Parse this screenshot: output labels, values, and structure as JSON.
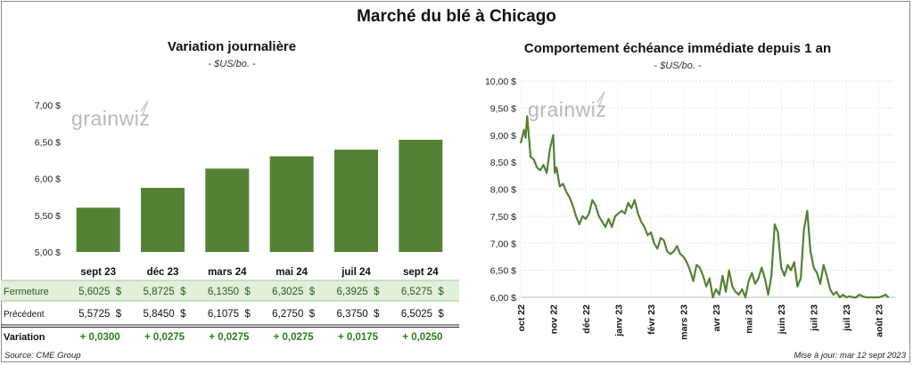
{
  "title": "Marché du blé à Chicago",
  "left_panel": {
    "title": "Variation  journalière",
    "subtitle": "- $US/bo. -",
    "table": {
      "rows": [
        {
          "label": "Fermeture",
          "values": [
            "5,6025  $",
            "5,8725  $",
            "6,1350  $",
            "6,3025  $",
            "6,3925  $",
            "6,5275  $"
          ]
        },
        {
          "label": "Précédent",
          "values": [
            "5,5725  $",
            "5,8450  $",
            "6,1075  $",
            "6,2750  $",
            "6,3750  $",
            "6,5025  $"
          ]
        },
        {
          "label": "Variation",
          "values": [
            "+ 0,0300",
            "+ 0,0275",
            "+ 0,0275",
            "+ 0,0275",
            "+ 0,0175",
            "+ 0,0250"
          ]
        }
      ]
    }
  },
  "right_panel": {
    "title": "Comportement  échéance immédiate depuis 1 an",
    "subtitle": "- $US/bo. -"
  },
  "footer": {
    "source": "Source: CME Group",
    "updated": "Mise à jour: mar 12 sept 2023"
  },
  "logo": {
    "text": "grainwiz"
  },
  "colors": {
    "bar": "#548235",
    "line": "#548235",
    "positive": "#2e7d1e",
    "row_highlight": "#e2efda"
  },
  "chart_data": [
    {
      "type": "bar",
      "categories": [
        "sept 23",
        "déc 23",
        "mars 24",
        "mai 24",
        "juil 24",
        "sept 24"
      ],
      "values": [
        5.6025,
        5.8725,
        6.135,
        6.3025,
        6.3925,
        6.5275
      ],
      "ylim": [
        5.0,
        7.0
      ],
      "yticks": [
        5.0,
        5.5,
        6.0,
        6.5,
        7.0
      ],
      "ytick_labels": [
        "5,00 $",
        "5,50 $",
        "6,00 $",
        "6,50 $",
        "7,00 $"
      ],
      "grid": false
    },
    {
      "type": "line",
      "ylim": [
        6.0,
        10.0
      ],
      "yticks": [
        6.0,
        6.5,
        7.0,
        7.5,
        8.0,
        8.5,
        9.0,
        9.5,
        10.0
      ],
      "ytick_labels": [
        "6,00 $",
        "6,50 $",
        "7,00 $",
        "7,50 $",
        "8,00 $",
        "8,50 $",
        "9,00 $",
        "9,50 $",
        "10,00 $"
      ],
      "x_labels": [
        "oct 22",
        "nov 22",
        "déc 22",
        "janv 23",
        "févr 23",
        "mars 23",
        "avr 23",
        "mai 23",
        "juin 23",
        "juil 23",
        "juil 23",
        "août 23"
      ],
      "x_label_positions": [
        0,
        1,
        2,
        3,
        4,
        5,
        6,
        7,
        8,
        9,
        10,
        11
      ],
      "grid": true,
      "series": [
        {
          "x": [
            0,
            0.1,
            0.15,
            0.2,
            0.25,
            0.3,
            0.4,
            0.5,
            0.6,
            0.7,
            0.8,
            0.9,
            1.0,
            1.05,
            1.1,
            1.2,
            1.3,
            1.4,
            1.5,
            1.6,
            1.7,
            1.8,
            1.9,
            2.0,
            2.1,
            2.2,
            2.3,
            2.4,
            2.5,
            2.6,
            2.7,
            2.8,
            2.9,
            3.0,
            3.1,
            3.2,
            3.3,
            3.4,
            3.5,
            3.6,
            3.7,
            3.8,
            3.9,
            4.0,
            4.1,
            4.2,
            4.3,
            4.4,
            4.5,
            4.6,
            4.7,
            4.8,
            4.9,
            5.0,
            5.1,
            5.2,
            5.3,
            5.4,
            5.5,
            5.6,
            5.7,
            5.8,
            5.9,
            6.0,
            6.1,
            6.2,
            6.3,
            6.4,
            6.5,
            6.6,
            6.7,
            6.8,
            6.9,
            7.0,
            7.1,
            7.2,
            7.3,
            7.4,
            7.5,
            7.6,
            7.7,
            7.8,
            7.9,
            8.0,
            8.1,
            8.2,
            8.3,
            8.4,
            8.5,
            8.6,
            8.7,
            8.8,
            8.9,
            9.0,
            9.1,
            9.2,
            9.3,
            9.4,
            9.5,
            9.6,
            9.7,
            9.8,
            9.9,
            10.0,
            10.1,
            10.2,
            10.3,
            10.4,
            10.5,
            10.6,
            10.7,
            10.8,
            10.9,
            11.0,
            11.1,
            11.2,
            11.3
          ],
          "values": [
            8.85,
            9.1,
            8.95,
            9.35,
            9.0,
            8.6,
            8.55,
            8.4,
            8.35,
            8.45,
            8.3,
            8.75,
            9.0,
            8.3,
            8.4,
            8.05,
            8.1,
            7.95,
            7.85,
            7.7,
            7.5,
            7.35,
            7.5,
            7.45,
            7.55,
            7.8,
            7.7,
            7.5,
            7.4,
            7.3,
            7.45,
            7.3,
            7.5,
            7.55,
            7.6,
            7.55,
            7.75,
            7.65,
            7.8,
            7.55,
            7.4,
            7.3,
            7.15,
            7.2,
            7.0,
            6.9,
            7.1,
            7.05,
            6.85,
            6.8,
            6.85,
            6.95,
            6.8,
            6.75,
            6.65,
            6.5,
            6.3,
            6.6,
            6.55,
            6.4,
            6.2,
            6.35,
            6.0,
            6.15,
            6.05,
            6.4,
            6.1,
            6.5,
            6.2,
            6.1,
            6.05,
            6.15,
            6.0,
            6.3,
            6.45,
            6.25,
            6.35,
            6.55,
            6.35,
            6.05,
            6.4,
            7.35,
            7.2,
            6.55,
            6.4,
            6.6,
            6.5,
            6.65,
            6.2,
            6.35,
            7.25,
            7.6,
            6.85,
            6.55,
            6.45,
            6.25,
            6.6,
            6.4,
            6.15,
            6.05,
            6.1,
            6.0,
            6.05,
            6.0,
            6.02,
            6.0,
            6.0,
            6.05,
            6.02,
            6.0,
            6.0,
            6.0,
            6.0,
            6.0,
            6.02,
            6.05,
            6.0
          ]
        }
      ]
    }
  ]
}
